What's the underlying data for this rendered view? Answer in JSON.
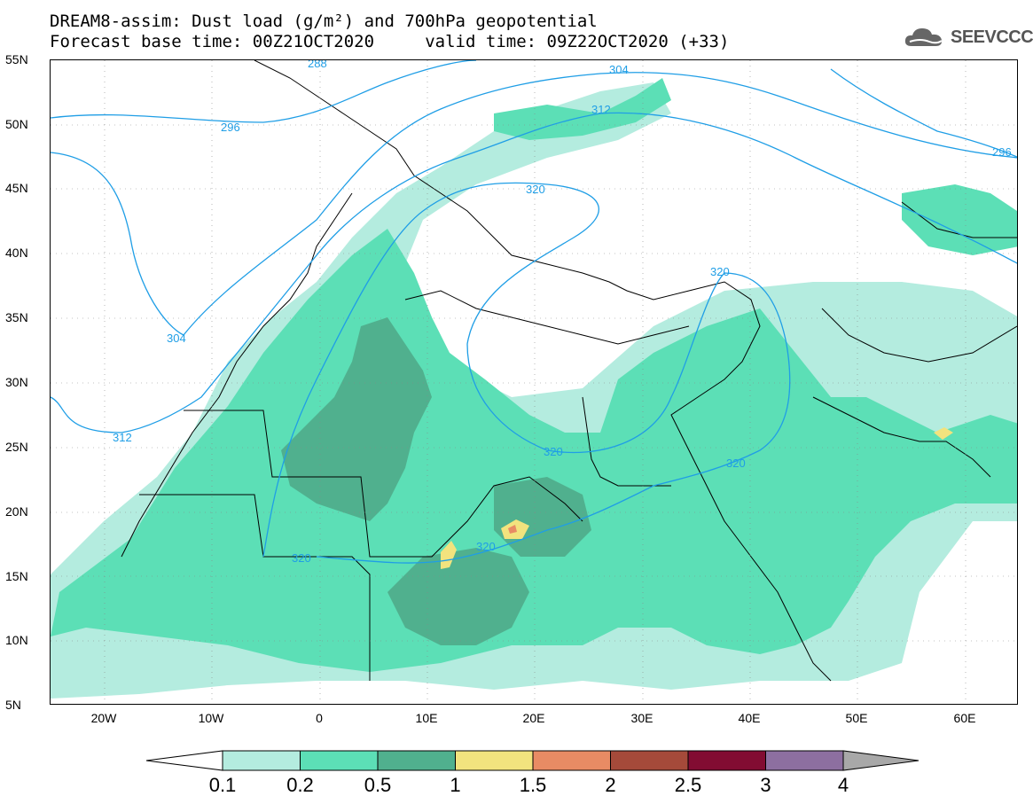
{
  "header": {
    "line1": "DREAM8-assim: Dust load (g/m²) and 700hPa geopotential",
    "line2": "Forecast base time: 00Z21OCT2020     valid time: 09Z22OCT2020 (+33)",
    "logo_text": "SEEVCCC"
  },
  "axes": {
    "lat_labels": [
      "55N",
      "50N",
      "45N",
      "40N",
      "35N",
      "30N",
      "25N",
      "20N",
      "15N",
      "10N",
      "5N"
    ],
    "lon_labels": [
      "20W",
      "10W",
      "0",
      "10E",
      "20E",
      "30E",
      "40E",
      "50E",
      "60E"
    ]
  },
  "contour_labels": [
    "288",
    "304",
    "296",
    "312",
    "296",
    "320",
    "320",
    "304",
    "312",
    "320",
    "320",
    "320",
    "320"
  ],
  "colorbar": {
    "levels": [
      "0.1",
      "0.2",
      "0.5",
      "1",
      "1.5",
      "2",
      "2.5",
      "3",
      "4"
    ],
    "colors": [
      "#b4ecdf",
      "#5cdfb6",
      "#50b08e",
      "#f2e37e",
      "#e88b64",
      "#a54a3a",
      "#820c32",
      "#8d6fa0",
      "#a8a8a8"
    ],
    "underflow_color": "#ffffff"
  },
  "colors": {
    "contour": "#1f9ee6",
    "land_outline": "#000000"
  }
}
